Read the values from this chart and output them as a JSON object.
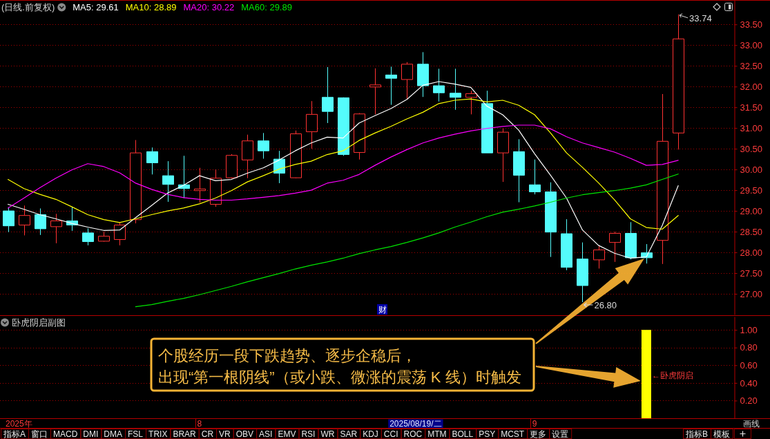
{
  "chart_data": [
    {
      "type": "candlestick",
      "title": "(日线.前复权)",
      "categories": [
        null,
        null,
        null,
        null,
        null,
        null,
        null,
        null,
        null,
        null,
        null,
        null,
        null,
        null,
        null,
        null,
        null,
        null,
        null,
        null,
        null,
        null,
        null,
        null,
        null,
        null,
        null,
        null,
        null,
        null,
        null,
        null,
        null,
        null,
        null,
        null,
        null,
        null,
        null,
        null,
        null,
        null,
        null,
        null,
        null,
        null
      ],
      "ohlc": [
        [
          29.0,
          29.09,
          28.49,
          28.64
        ],
        [
          28.66,
          29.13,
          28.41,
          28.89
        ],
        [
          28.91,
          29.06,
          28.42,
          28.57
        ],
        [
          28.62,
          28.93,
          28.22,
          28.76
        ],
        [
          28.76,
          29.09,
          28.52,
          28.66
        ],
        [
          28.47,
          28.58,
          28.17,
          28.26
        ],
        [
          28.27,
          28.5,
          28.26,
          28.39
        ],
        [
          28.31,
          28.73,
          28.17,
          28.66
        ],
        [
          28.79,
          30.71,
          28.7,
          30.4
        ],
        [
          30.43,
          30.53,
          29.88,
          30.16
        ],
        [
          29.85,
          30.2,
          29.22,
          29.64
        ],
        [
          29.63,
          30.33,
          29.31,
          29.54
        ],
        [
          29.49,
          30.04,
          29.2,
          29.53
        ],
        [
          29.16,
          30.0,
          29.1,
          29.79
        ],
        [
          29.8,
          30.37,
          29.78,
          30.34
        ],
        [
          30.23,
          30.84,
          29.79,
          30.69
        ],
        [
          30.69,
          30.88,
          30.26,
          30.45
        ],
        [
          30.25,
          30.45,
          29.67,
          29.91
        ],
        [
          29.8,
          30.94,
          29.79,
          30.86
        ],
        [
          30.91,
          31.65,
          30.5,
          31.33
        ],
        [
          31.74,
          32.47,
          31.12,
          31.4
        ],
        [
          31.73,
          31.74,
          30.33,
          30.36
        ],
        [
          30.41,
          31.36,
          30.24,
          31.34
        ],
        [
          31.99,
          32.44,
          31.33,
          32.04
        ],
        [
          32.28,
          32.48,
          31.56,
          32.2
        ],
        [
          32.17,
          32.59,
          31.7,
          32.54
        ],
        [
          32.54,
          32.83,
          31.75,
          32.02
        ],
        [
          32.02,
          32.43,
          31.64,
          31.85
        ],
        [
          31.84,
          32.43,
          31.44,
          31.74
        ],
        [
          31.74,
          31.9,
          31.33,
          31.83
        ],
        [
          31.59,
          31.9,
          30.4,
          30.4
        ],
        [
          30.4,
          30.99,
          29.7,
          30.9
        ],
        [
          30.43,
          30.73,
          29.21,
          29.86
        ],
        [
          29.63,
          30.24,
          29.4,
          29.46
        ],
        [
          29.46,
          29.69,
          27.89,
          28.49
        ],
        [
          28.45,
          28.8,
          27.57,
          27.64
        ],
        [
          27.84,
          28.24,
          26.8,
          27.2
        ],
        [
          27.82,
          28.15,
          27.61,
          28.06
        ],
        [
          28.24,
          28.5,
          27.77,
          28.46
        ],
        [
          28.46,
          28.73,
          27.83,
          27.87
        ],
        [
          27.99,
          28.2,
          27.73,
          27.87
        ],
        [
          28.29,
          31.82,
          27.72,
          30.68
        ],
        [
          30.88,
          33.74,
          30.48,
          33.15
        ],
        null,
        null,
        null
      ],
      "colors": [
        "#54fcfc",
        "#ff3232",
        "#54fcfc",
        "#ff3232",
        "#54fcfc",
        "#54fcfc",
        "#ff3232",
        "#ff3232",
        "#ff3232",
        "#54fcfc",
        "#54fcfc",
        "#54fcfc",
        "#ff3232",
        "#ff3232",
        "#ff3232",
        "#ff3232",
        "#54fcfc",
        "#54fcfc",
        "#ff3232",
        "#ff3232",
        "#54fcfc",
        "#54fcfc",
        "#ff3232",
        "#ff3232",
        "#54fcfc",
        "#ff3232",
        "#54fcfc",
        "#54fcfc",
        "#54fcfc",
        "#ff3232",
        "#54fcfc",
        "#ff3232",
        "#54fcfc",
        "#54fcfc",
        "#54fcfc",
        "#54fcfc",
        "#54fcfc",
        "#ff3232",
        "#ff3232",
        "#54fcfc",
        "#54fcfc",
        "#ff3232",
        "#ff3232",
        null,
        null,
        null
      ],
      "series": [
        {
          "type": "line",
          "name": "MA5: 29.61",
          "color": "#ffffff",
          "values": [
            29.16,
            29.04,
            28.91,
            28.81,
            28.7,
            28.61,
            28.53,
            28.54,
            28.84,
            29.13,
            29.43,
            29.62,
            29.85,
            29.73,
            29.76,
            29.91,
            30.04,
            30.23,
            30.45,
            30.64,
            30.78,
            30.76,
            31.12,
            31.3,
            31.47,
            31.69,
            32.03,
            32.12,
            32.06,
            31.98,
            31.53,
            31.32,
            30.95,
            30.38,
            29.86,
            29.31,
            28.54,
            28.17,
            27.98,
            27.86,
            27.89,
            28.65,
            29.61,
            null,
            null,
            null
          ]
        },
        {
          "type": "line",
          "name": "MA10: 28.89",
          "color": "#ffff00",
          "values": [
            29.76,
            29.54,
            29.4,
            29.28,
            29.1,
            28.91,
            28.79,
            28.72,
            28.81,
            28.91,
            29.0,
            29.07,
            29.17,
            29.31,
            29.49,
            29.7,
            29.85,
            30.01,
            30.12,
            30.2,
            30.36,
            30.45,
            30.7,
            30.88,
            31.04,
            31.22,
            31.38,
            31.59,
            31.67,
            31.7,
            31.63,
            31.67,
            31.55,
            31.32,
            30.88,
            30.4,
            30.05,
            29.68,
            29.27,
            28.81,
            28.6,
            28.56,
            28.89,
            null,
            null,
            null
          ]
        },
        {
          "type": "line",
          "name": "MA20: 30.22",
          "color": "#ff00ff",
          "values": [
            29.07,
            29.31,
            29.56,
            29.79,
            29.99,
            30.14,
            30.07,
            29.92,
            29.67,
            29.52,
            29.4,
            29.32,
            29.28,
            29.26,
            29.26,
            29.29,
            29.33,
            29.37,
            29.43,
            29.5,
            29.67,
            29.74,
            29.88,
            30.1,
            30.3,
            30.48,
            30.64,
            30.76,
            30.85,
            30.93,
            30.99,
            31.04,
            31.07,
            31.07,
            30.98,
            30.79,
            30.64,
            30.53,
            30.42,
            30.27,
            30.1,
            30.12,
            30.22,
            null,
            null,
            null
          ]
        },
        {
          "type": "line",
          "name": "MA60: 29.89",
          "color": "#00e600",
          "values": [
            null,
            null,
            null,
            null,
            null,
            null,
            null,
            null,
            26.69,
            26.74,
            26.82,
            26.89,
            26.98,
            27.08,
            27.18,
            27.29,
            27.39,
            27.49,
            27.6,
            27.69,
            27.77,
            27.86,
            27.97,
            28.06,
            28.14,
            28.24,
            28.35,
            28.47,
            28.61,
            28.73,
            28.86,
            28.97,
            29.04,
            29.12,
            29.21,
            29.31,
            29.39,
            29.44,
            29.49,
            29.55,
            29.63,
            29.76,
            29.89,
            null,
            null,
            null
          ]
        }
      ],
      "ylim": [
        26.5,
        34.08
      ],
      "yticks": [
        {
          "value": 27,
          "label": "27.00"
        },
        {
          "value": 27.5,
          "label": "27.50"
        },
        {
          "value": 28,
          "label": "28.00"
        },
        {
          "value": 28.5,
          "label": "28.50"
        },
        {
          "value": 29,
          "label": "29.00"
        },
        {
          "value": 29.5,
          "label": "29.50"
        },
        {
          "value": 30,
          "label": "30.00"
        },
        {
          "value": 30.5,
          "label": "30.50"
        },
        {
          "value": 31,
          "label": "31.00"
        },
        {
          "value": 31.5,
          "label": "31.50"
        },
        {
          "value": 32,
          "label": "32.00"
        },
        {
          "value": 32.5,
          "label": "32.50"
        },
        {
          "value": 33,
          "label": "33.00"
        },
        {
          "value": 33.5,
          "label": "33.50"
        }
      ],
      "grid": "y",
      "tick_labels": "y",
      "annotations": [
        "33.74",
        "26.80",
        "财"
      ]
    },
    {
      "type": "bar",
      "title": "卧虎阴启副图",
      "categories": [
        null,
        null,
        null,
        null,
        null,
        null,
        null,
        null,
        null,
        null,
        null,
        null,
        "8",
        null,
        null,
        null,
        null,
        null,
        null,
        null,
        null,
        null,
        null,
        null,
        null,
        null,
        null,
        null,
        null,
        null,
        null,
        null,
        null,
        "9",
        null,
        null,
        null,
        null,
        null,
        null,
        null,
        null,
        null,
        null,
        null,
        null
      ],
      "values": [
        null,
        null,
        null,
        null,
        null,
        null,
        null,
        null,
        null,
        null,
        null,
        null,
        null,
        null,
        null,
        null,
        null,
        null,
        null,
        null,
        null,
        null,
        null,
        null,
        null,
        null,
        null,
        null,
        null,
        null,
        null,
        null,
        null,
        null,
        null,
        null,
        null,
        null,
        null,
        null,
        1,
        null,
        null,
        null,
        null,
        null
      ],
      "color": "#ffff00",
      "ylim": [
        0,
        1.15
      ],
      "yticks": [
        {
          "value": 0.2,
          "label": "0.20"
        },
        {
          "value": 0.4,
          "label": "0.40"
        },
        {
          "value": 0.6,
          "label": "0.60"
        },
        {
          "value": 0.8,
          "label": "0.80"
        },
        {
          "value": 1,
          "label": "1.00"
        }
      ],
      "grid": "y",
      "annotations": [
        "←卧虎阴启",
        "个股经历一段下跌趋势、逐步企稳后，",
        "出现“第一根阴线”（或小跌、微涨的震荡 K 线）时触发",
        "2025/08/19/二",
        "2025年",
        "画线",
        "指标A",
        "窗口",
        "MACD",
        "DMI",
        "DMA",
        "FSL",
        "TRIX",
        "BRAR",
        "CR",
        "VR",
        "OBV",
        "ASI",
        "EMV",
        "RSI",
        "WR",
        "SAR",
        "KDJ",
        "CCI",
        "ROC",
        "MTM",
        "BOLL",
        "PSY",
        "MCST",
        "更多",
        "设置",
        "指标B",
        "模板"
      ]
    }
  ]
}
